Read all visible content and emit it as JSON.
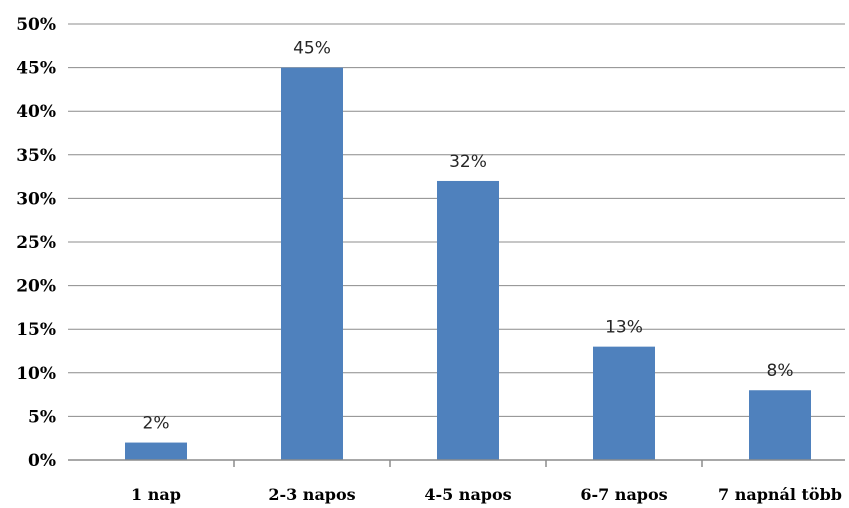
{
  "chart_data": {
    "type": "bar",
    "title": "",
    "xlabel": "",
    "ylabel": "",
    "categories": [
      "1 nap",
      "2-3 napos",
      "4-5 napos",
      "6-7 napos",
      "7 napnál több"
    ],
    "values": [
      2,
      45,
      32,
      13,
      8
    ],
    "data_labels": [
      "2%",
      "45%",
      "32%",
      "13%",
      "8%"
    ],
    "ylim": [
      0,
      50
    ],
    "y_ticks": [
      0,
      5,
      10,
      15,
      20,
      25,
      30,
      35,
      40,
      45,
      50
    ],
    "y_tick_labels": [
      "0%",
      "5%",
      "10%",
      "15%",
      "20%",
      "25%",
      "30%",
      "35%",
      "40%",
      "45%",
      "50%"
    ],
    "grid": true,
    "legend": "none",
    "colors": {
      "bar": "#4F81BD",
      "gridline": "#8C8C8C",
      "axis": "#8C8C8C"
    }
  }
}
